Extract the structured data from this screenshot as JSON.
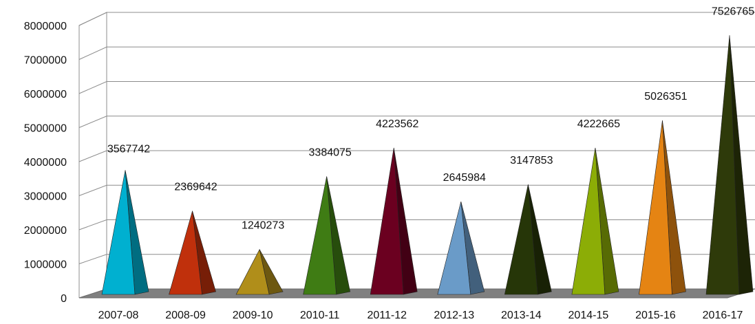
{
  "chart_data": {
    "type": "bar",
    "bar_shape": "pyramid",
    "view": "3d",
    "categories": [
      "2007-08",
      "2008-09",
      "2009-10",
      "2010-11",
      "2011-12",
      "2012-13",
      "2013-14",
      "2014-15",
      "2015-16",
      "2016-17"
    ],
    "values": [
      3567742,
      2369642,
      1240273,
      3384075,
      4223562,
      2645984,
      3147853,
      4222665,
      5026351,
      7526765
    ],
    "data_labels": [
      "3567742",
      "2369642",
      "1240273",
      "3384075",
      "4223562",
      "2645984",
      "3147853",
      "4222665",
      "5026351",
      "7526765"
    ],
    "y_ticks": [
      "0",
      "1000000",
      "2000000",
      "3000000",
      "4000000",
      "5000000",
      "6000000",
      "7000000",
      "8000000"
    ],
    "ylim": [
      0,
      8000000
    ],
    "title": "",
    "xlabel": "",
    "ylabel": "",
    "grid": true,
    "legend": "none",
    "colors": [
      "#00b0d0",
      "#c0300c",
      "#b08e1a",
      "#3f7c14",
      "#6b0020",
      "#6a9bc8",
      "#263608",
      "#8cad06",
      "#e58413",
      "#2e3a0a"
    ],
    "floor_color": "#808080"
  }
}
